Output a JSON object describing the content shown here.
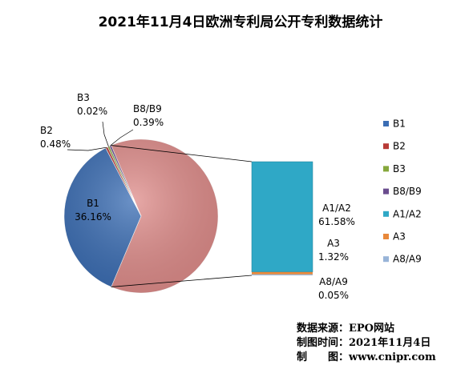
{
  "chart_data": {
    "type": "pie",
    "title": "2021年11月4日欧洲专利局公开专利数据统计",
    "main_pie": {
      "slices": [
        {
          "name": "B1",
          "label": "B1",
          "percent_text": "36.16%",
          "value": 36.16,
          "color": "#3a6db4"
        },
        {
          "name": "B2",
          "label": "B2",
          "percent_text": "0.48%",
          "value": 0.48,
          "color": "#b83a36"
        },
        {
          "name": "B3",
          "label": "B3",
          "percent_text": "0.02%",
          "value": 0.02,
          "color": "#86a83c"
        },
        {
          "name": "B8/B9",
          "label": "B8/B9",
          "percent_text": "0.39%",
          "value": 0.39,
          "color": "#6a4d8e"
        },
        {
          "name": "Other",
          "label": "",
          "percent_text": "",
          "value": 62.95,
          "color": "#e08d8b"
        }
      ]
    },
    "breakdown_bar": {
      "segments": [
        {
          "name": "A1/A2",
          "label": "A1/A2",
          "percent_text": "61.58%",
          "value": 61.58,
          "color": "#2fa8c6"
        },
        {
          "name": "A3",
          "label": "A3",
          "percent_text": "1.32%",
          "value": 1.32,
          "color": "#e8883a"
        },
        {
          "name": "A8/A9",
          "label": "A8/A9",
          "percent_text": "0.05%",
          "value": 0.05,
          "color": "#98b4d8"
        }
      ]
    },
    "legend": {
      "placement": "right",
      "items": [
        {
          "label": "B1",
          "color": "#3a6db4"
        },
        {
          "label": "B2",
          "color": "#b83a36"
        },
        {
          "label": "B3",
          "color": "#86a83c"
        },
        {
          "label": "B8/B9",
          "color": "#6a4d8e"
        },
        {
          "label": "A1/A2",
          "color": "#2fa8c6"
        },
        {
          "label": "A3",
          "color": "#e8883a"
        },
        {
          "label": "A8/A9",
          "color": "#98b4d8"
        }
      ]
    },
    "source": {
      "line1": "数据来源：EPO网站",
      "line2": "制图时间：2021年11月4日",
      "line3": "制　　图：www.cnipr.com"
    }
  }
}
